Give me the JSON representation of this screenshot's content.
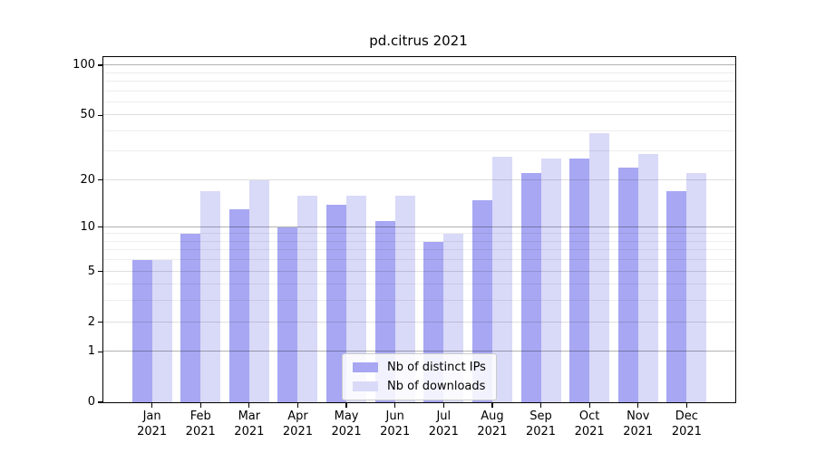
{
  "chart_data": {
    "type": "bar",
    "title": "pd.citrus 2021",
    "categories": [
      "Jan",
      "Feb",
      "Mar",
      "Apr",
      "May",
      "Jun",
      "Jul",
      "Aug",
      "Sep",
      "Oct",
      "Nov",
      "Dec"
    ],
    "x_year": "2021",
    "series": [
      {
        "name": "Nb of distinct IPs",
        "color": "#a7a7f3",
        "values": [
          6,
          9,
          13,
          10,
          14,
          11,
          8,
          15,
          22,
          27,
          24,
          17
        ]
      },
      {
        "name": "Nb of downloads",
        "color": "#d9d9f8",
        "values": [
          6,
          17,
          20,
          16,
          16,
          16,
          9,
          28,
          27,
          39,
          29,
          22
        ]
      }
    ],
    "xlabel": "",
    "ylabel": "",
    "yscale": "log1p",
    "ylim": [
      0,
      112
    ],
    "yticks": [
      0,
      1,
      2,
      5,
      10,
      20,
      50,
      100
    ],
    "major_gridlines": [
      1,
      10,
      100
    ],
    "minor_gridlines": [
      3,
      4,
      6,
      7,
      8,
      9,
      30,
      40,
      60,
      70,
      80,
      90
    ],
    "grid": true,
    "legend_position": "lower center"
  }
}
